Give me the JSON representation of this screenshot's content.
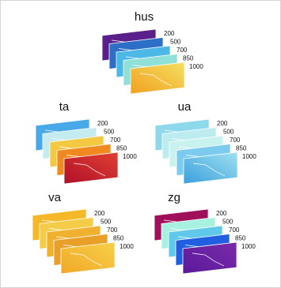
{
  "panels": [
    {
      "title": "hus",
      "levels": [
        "200",
        "500",
        "700",
        "850",
        "1000"
      ]
    },
    {
      "title": "ta",
      "levels": [
        "200",
        "500",
        "700",
        "850",
        "1000"
      ]
    },
    {
      "title": "ua",
      "levels": [
        "200",
        "500",
        "700",
        "850",
        "1000"
      ]
    },
    {
      "title": "va",
      "levels": [
        "200",
        "500",
        "700",
        "850",
        "1000"
      ]
    },
    {
      "title": "zg",
      "levels": [
        "200",
        "500",
        "700",
        "850",
        "1000"
      ]
    }
  ]
}
